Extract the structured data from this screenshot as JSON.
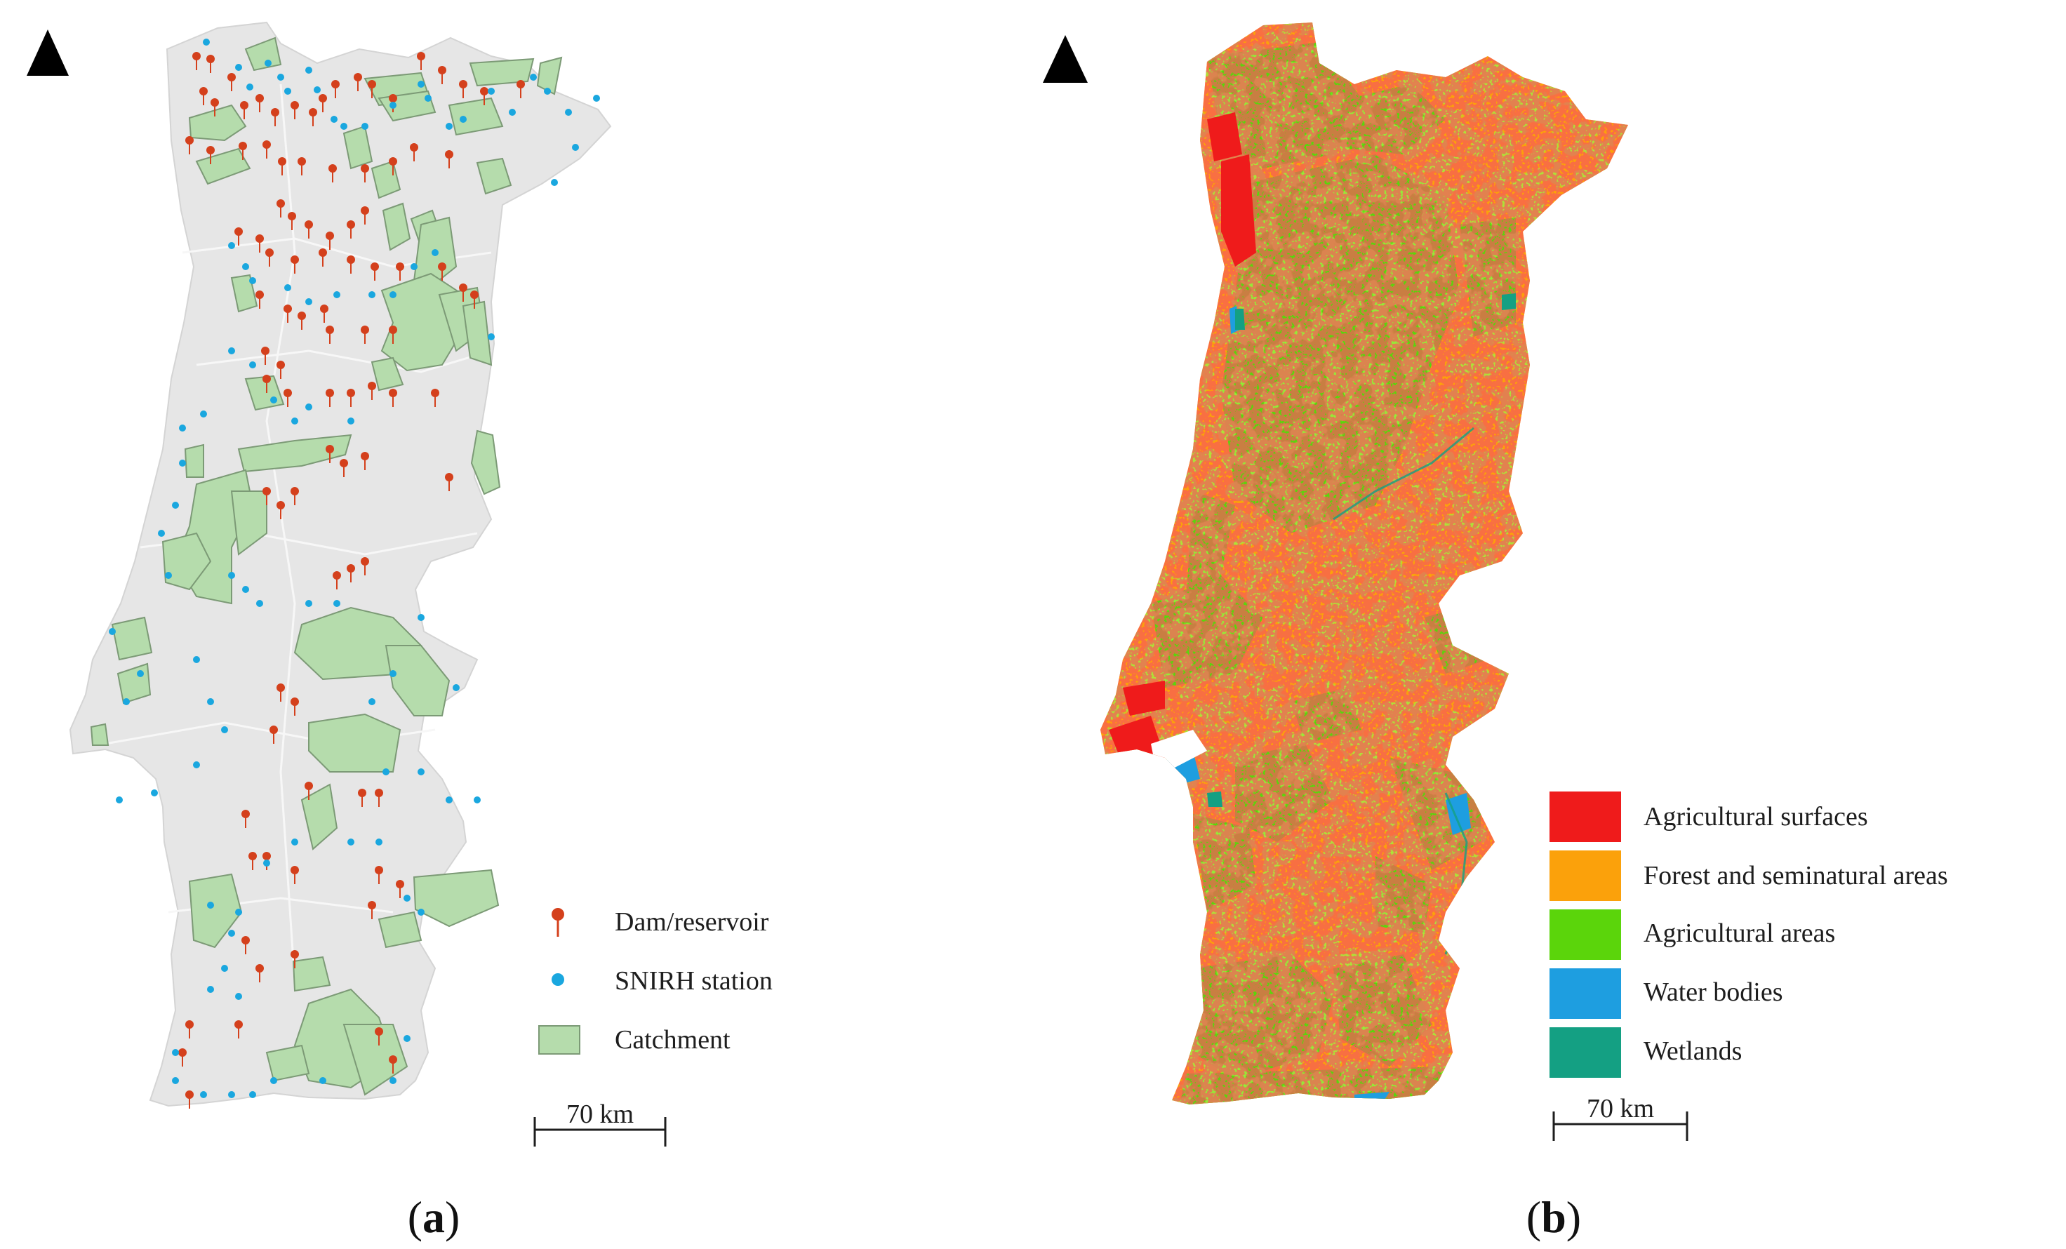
{
  "panel_a": {
    "label_open": "(",
    "label_letter": "a",
    "label_close": ")",
    "legend": [
      {
        "label": "Dam/reservoir",
        "color": "#d4401c",
        "symbol": "pin-icon"
      },
      {
        "label": "SNIRH station",
        "color": "#1aa7df",
        "symbol": "dot-icon"
      },
      {
        "label": "Catchment",
        "color": "#b5dcac",
        "symbol": "square-icon"
      }
    ],
    "scale_bar": "70 km"
  },
  "panel_b": {
    "label_open": "(",
    "label_letter": "b",
    "label_close": ")",
    "legend": [
      {
        "label": "Agricultural surfaces",
        "color": "#ef1b1b"
      },
      {
        "label": "Forest and seminatural areas",
        "color": "#fba10b"
      },
      {
        "label": "Agricultural areas",
        "color": "#5bd50b"
      },
      {
        "label": "Water bodies",
        "color": "#1e9ee0"
      },
      {
        "label": "Wetlands",
        "color": "#14a083"
      }
    ],
    "scale_bar": "70 km"
  },
  "colors": {
    "land_grey": "#e6e6e6",
    "catchment_fill": "#b5dcac",
    "catchment_stroke": "#7c9a76",
    "dam": "#d4401c",
    "station": "#1aa7df"
  }
}
